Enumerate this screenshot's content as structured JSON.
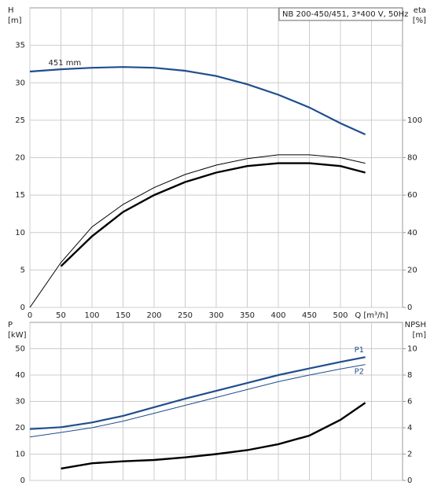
{
  "chart_data": [
    {
      "type": "line",
      "title": "NB 200-450/451, 3*400 V, 50Hz",
      "y_label": [
        "H",
        "[m]"
      ],
      "y2_label": [
        "eta",
        "[%]"
      ],
      "x": [
        0,
        50,
        100,
        150,
        200,
        250,
        300,
        350,
        400,
        450,
        500,
        540
      ],
      "xlim": [
        0,
        600
      ],
      "xticks": [
        0,
        50,
        100,
        150,
        200,
        250,
        300,
        350,
        400,
        450,
        500,
        {
          "value": 550,
          "label": "Q [m³/h]"
        }
      ],
      "show_xtick_labels": true,
      "ylim": [
        0,
        40
      ],
      "yticks": [
        0,
        5,
        10,
        15,
        20,
        25,
        30,
        35
      ],
      "y2lim": [
        0,
        160
      ],
      "y2ticks": [
        0,
        20,
        40,
        60,
        80,
        100
      ],
      "grid": true,
      "series": [
        {
          "name": "451 mm",
          "color": "#1f4e8c",
          "width": 2.2,
          "values": [
            31.5,
            31.8,
            32.0,
            32.1,
            32.0,
            31.6,
            30.9,
            29.8,
            28.4,
            26.7,
            24.6,
            23.1
          ]
        },
        {
          "color": "#000000",
          "width": 1,
          "axis": "y2",
          "values": [
            0,
            24,
            43,
            55,
            64,
            71,
            76,
            79.5,
            81.5,
            81.5,
            80,
            77
          ]
        },
        {
          "color": "#000000",
          "width": 2.4,
          "axis": "y2",
          "values": [
            null,
            22,
            38,
            51,
            60,
            67,
            72,
            75.5,
            77,
            77,
            75.5,
            72
          ]
        }
      ]
    },
    {
      "type": "line",
      "y_label": [
        "P",
        "[kW]"
      ],
      "y2_label": [
        "NPSH",
        "[m]"
      ],
      "x": [
        0,
        50,
        100,
        150,
        200,
        250,
        300,
        350,
        400,
        450,
        500,
        540
      ],
      "xlim": [
        0,
        600
      ],
      "xticks": [
        0,
        50,
        100,
        150,
        200,
        250,
        300,
        350,
        400,
        450,
        500,
        550
      ],
      "show_xtick_labels": false,
      "ylim": [
        0,
        60
      ],
      "yticks": [
        0,
        10,
        20,
        30,
        40,
        50
      ],
      "y2lim": [
        0,
        12
      ],
      "y2ticks": [
        0,
        2,
        4,
        6,
        8,
        10
      ],
      "grid": true,
      "series": [
        {
          "name": "P1",
          "color": "#1f4e8c",
          "width": 2.2,
          "values": [
            19.5,
            20.2,
            22,
            24.5,
            27.8,
            31,
            34,
            37,
            40,
            42.5,
            45,
            46.8
          ]
        },
        {
          "name": "P2",
          "color": "#1f4e8c",
          "width": 1,
          "values": [
            16.5,
            18.2,
            20,
            22.5,
            25.5,
            28.5,
            31.5,
            34.5,
            37.5,
            40,
            42.3,
            44
          ]
        },
        {
          "color": "#000000",
          "width": 2.4,
          "axis": "y2",
          "values": [
            null,
            0.9,
            1.3,
            1.45,
            1.55,
            1.75,
            2.0,
            2.3,
            2.75,
            3.4,
            4.6,
            5.9
          ]
        }
      ]
    }
  ]
}
